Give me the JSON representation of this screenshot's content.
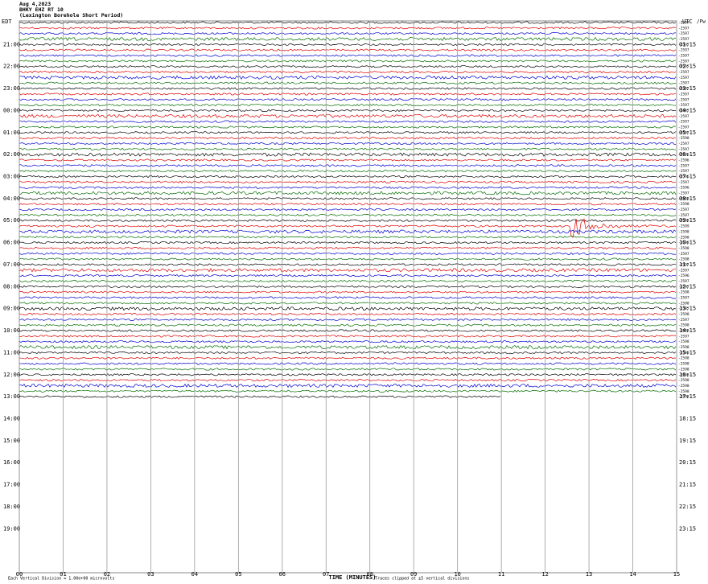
{
  "header": {
    "date": "Aug 4,2023",
    "station": "BHKY EHZ RT 10",
    "description": "(Lexington Borehole Short Period)"
  },
  "left_axis": {
    "title": "EDT",
    "labels": [
      "21:00",
      "22:00",
      "23:00",
      "00:00",
      "01:00",
      "02:00",
      "03:00",
      "04:00",
      "05:00",
      "06:00",
      "07:00",
      "08:00",
      "09:00",
      "10:00",
      "11:00",
      "12:00",
      "13:00",
      "14:00",
      "15:00",
      "16:00",
      "17:00",
      "18:00",
      "19:00"
    ]
  },
  "right_axis": {
    "title": "UTC",
    "unit": "/Pw",
    "labels": [
      "01:15",
      "02:15",
      "03:15",
      "04:15",
      "05:15",
      "06:15",
      "07:15",
      "08:15",
      "09:15",
      "10:15",
      "11:15",
      "12:15",
      "13:15",
      "14:15",
      "15:15",
      "16:15",
      "17:15",
      "18:15",
      "19:15",
      "20:15",
      "21:15",
      "22:15",
      "23:15"
    ]
  },
  "trace_colors": [
    "#000000",
    "#e00000",
    "#0000d0",
    "#007000"
  ],
  "trace_labels": [
    "-2597",
    "-2597",
    "-2597",
    "-2597",
    "-2597",
    "-2597",
    "-2597",
    "-2597",
    "-2597",
    "-2597",
    "-2597",
    "-2597",
    "-2597",
    "-2597",
    "-2597",
    "-2597",
    "-2597",
    "-2597",
    "-2597",
    "-2597",
    "-2597",
    "-2598",
    "-2597",
    "-2597",
    "-2596",
    "-2596",
    "-2597",
    "-2597",
    "-2596",
    "-2597",
    "-2596",
    "-2597",
    "-2598",
    "-2598",
    "-2597",
    "-2597",
    "-2598",
    "-2599",
    "-2598",
    "-2598",
    "-2598",
    "-2598",
    "-2597",
    "-2598",
    "-2597",
    "-2597",
    "-2596",
    "-2597",
    "-2597",
    "-2598",
    "-2597",
    "-2598",
    "-2597",
    "-2598",
    "-2597",
    "-2598",
    "-2598",
    "-2597",
    "-2598",
    "-2598",
    "-2598",
    "-2598",
    "-2598",
    "-2598",
    "-2598",
    "-2598",
    "-2598",
    "-2598",
    "-2598"
  ],
  "x_axis": {
    "title": "TIME (MINUTES)",
    "ticks": [
      "00",
      "01",
      "02",
      "03",
      "04",
      "05",
      "06",
      "07",
      "08",
      "09",
      "10",
      "11",
      "12",
      "13",
      "14",
      "15"
    ]
  },
  "notes": {
    "left": "Each Vertical Division = 1.00e+00 microvolts",
    "right": "Traces clipped at ±5 vertical divisions"
  }
}
